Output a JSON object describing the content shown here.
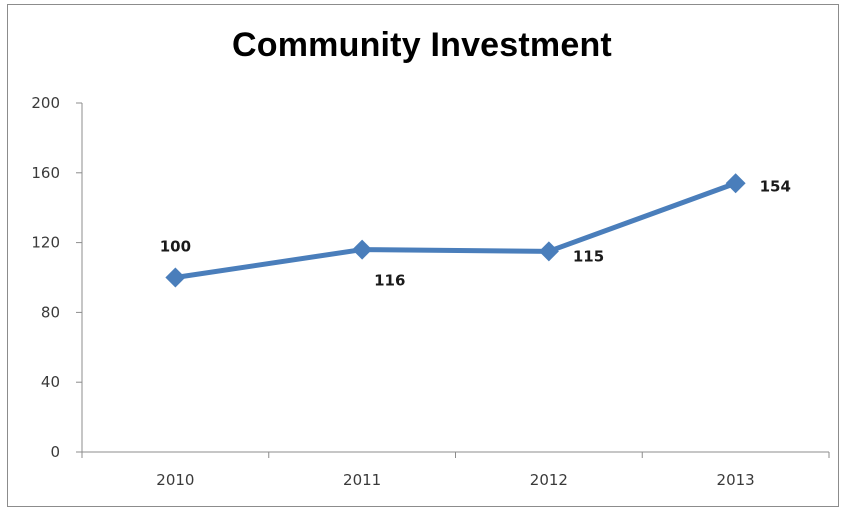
{
  "chart_data": {
    "type": "line",
    "title": "Community Investment",
    "categories": [
      "2010",
      "2011",
      "2012",
      "2013"
    ],
    "series": [
      {
        "values": [
          100,
          116,
          115,
          154
        ],
        "color": "#4a7ebb",
        "marker": "diamond"
      }
    ],
    "data_labels": [
      "100",
      "116",
      "115",
      "154"
    ],
    "ylim": [
      0,
      200
    ],
    "yticks": [
      0,
      40,
      80,
      120,
      160,
      200
    ],
    "xlabel": "",
    "ylabel": "",
    "grid": false,
    "legend": "none"
  }
}
